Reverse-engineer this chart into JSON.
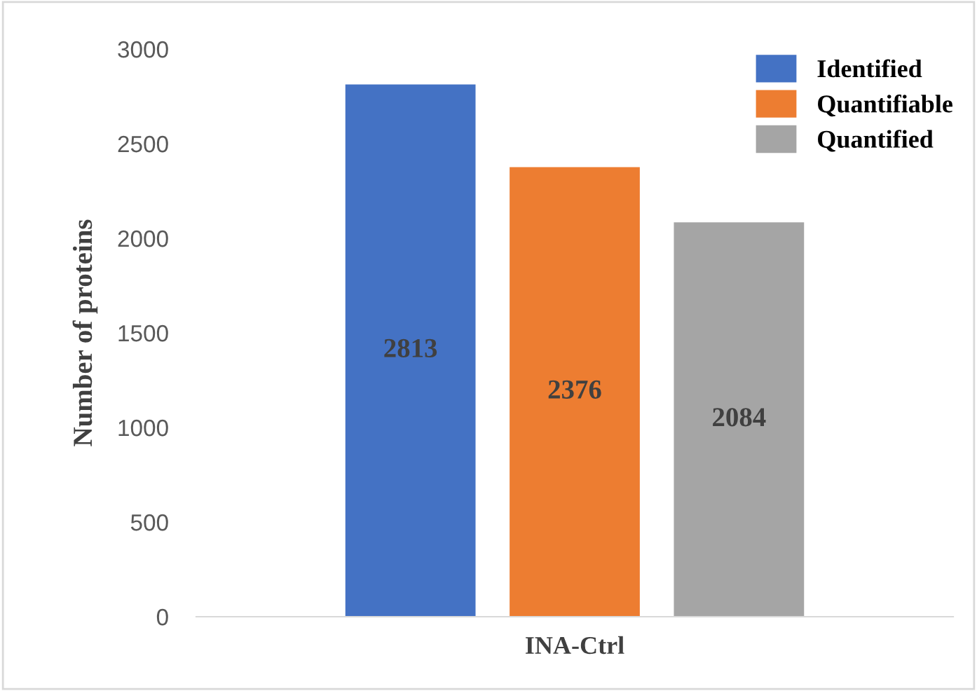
{
  "chart_data": {
    "type": "bar",
    "ylabel": "Number of proteins",
    "categories": [
      "INA-Ctrl"
    ],
    "series": [
      {
        "name": "Identified",
        "color": "#4472c4",
        "values": [
          2813
        ]
      },
      {
        "name": "Quantifiable",
        "color": "#ed7d31",
        "values": [
          2376
        ]
      },
      {
        "name": "Quantified",
        "color": "#a5a5a5",
        "values": [
          2084
        ]
      }
    ],
    "ylim": [
      0,
      3000
    ],
    "yticks": [
      0,
      500,
      1000,
      1500,
      2000,
      2500,
      3000
    ],
    "grid": false,
    "legend": "top right",
    "data_labels": true
  }
}
